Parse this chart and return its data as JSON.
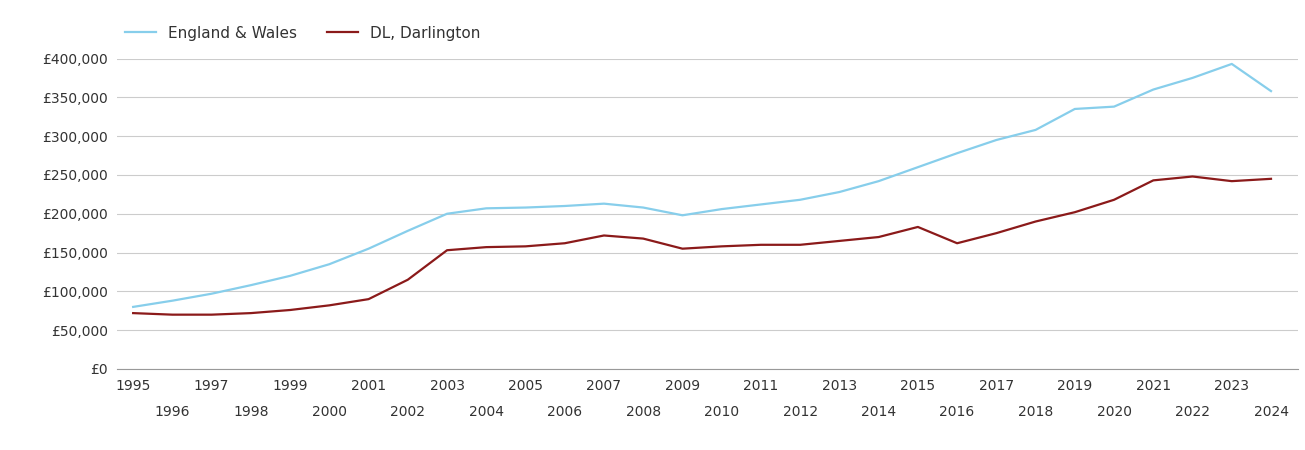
{
  "dl_years": [
    1995,
    1996,
    1997,
    1998,
    1999,
    2000,
    2001,
    2002,
    2003,
    2004,
    2005,
    2006,
    2007,
    2008,
    2009,
    2010,
    2011,
    2012,
    2013,
    2014,
    2015,
    2016,
    2017,
    2018,
    2019,
    2020,
    2021,
    2022,
    2023,
    2024
  ],
  "dl_values": [
    72000,
    70000,
    70000,
    72000,
    76000,
    82000,
    90000,
    115000,
    153000,
    157000,
    158000,
    162000,
    172000,
    168000,
    155000,
    158000,
    160000,
    160000,
    165000,
    170000,
    183000,
    162000,
    175000,
    190000,
    202000,
    218000,
    243000,
    248000,
    242000,
    245000
  ],
  "ew_years": [
    1995,
    1996,
    1997,
    1998,
    1999,
    2000,
    2001,
    2002,
    2003,
    2004,
    2005,
    2006,
    2007,
    2008,
    2009,
    2010,
    2011,
    2012,
    2013,
    2014,
    2015,
    2016,
    2017,
    2018,
    2019,
    2020,
    2021,
    2022,
    2023,
    2024
  ],
  "ew_values": [
    80000,
    88000,
    97000,
    108000,
    120000,
    135000,
    155000,
    178000,
    200000,
    207000,
    208000,
    210000,
    213000,
    208000,
    198000,
    206000,
    212000,
    218000,
    228000,
    242000,
    260000,
    278000,
    295000,
    308000,
    335000,
    338000,
    360000,
    375000,
    393000,
    358000
  ],
  "dl_color": "#8B1A1A",
  "ew_color": "#87CEEB",
  "dl_label": "DL, Darlington",
  "ew_label": "England & Wales",
  "ylim": [
    0,
    400000
  ],
  "yticks": [
    0,
    50000,
    100000,
    150000,
    200000,
    250000,
    300000,
    350000,
    400000
  ],
  "ytick_labels": [
    "£0",
    "£50,000",
    "£100,000",
    "£150,000",
    "£200,000",
    "£250,000",
    "£300,000",
    "£350,000",
    "£400,000"
  ],
  "background_color": "#ffffff",
  "grid_color": "#cccccc",
  "line_width": 1.6,
  "xlim_left": 1994.6,
  "xlim_right": 2024.7
}
